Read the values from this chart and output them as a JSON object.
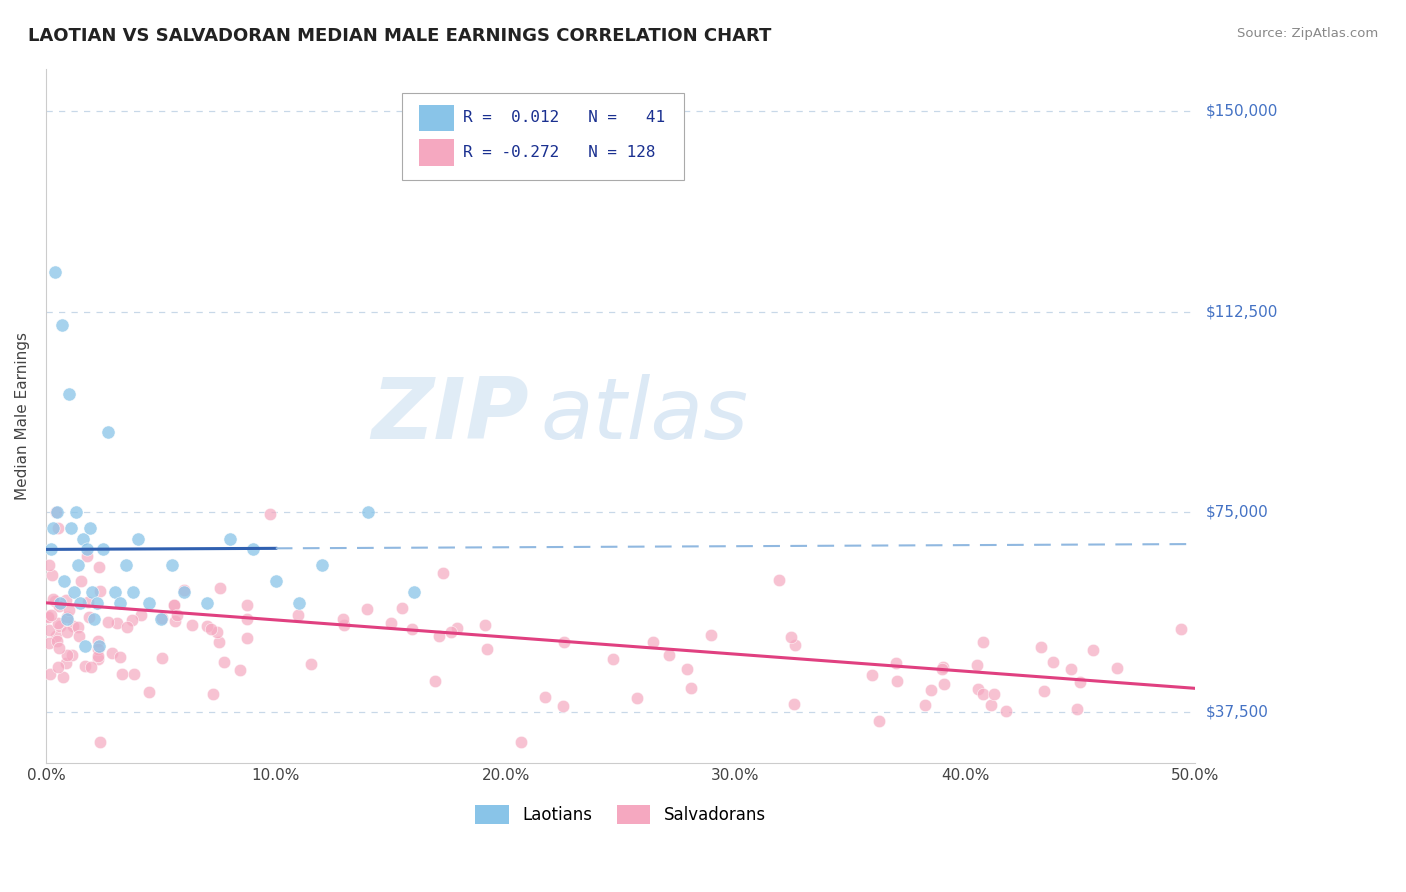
{
  "title": "LAOTIAN VS SALVADORAN MEDIAN MALE EARNINGS CORRELATION CHART",
  "source": "Source: ZipAtlas.com",
  "ylabel": "Median Male Earnings",
  "xlim": [
    0.0,
    0.5
  ],
  "ylim": [
    28000,
    158000
  ],
  "yticks": [
    37500,
    75000,
    112500,
    150000
  ],
  "ytick_labels": [
    "$37,500",
    "$75,000",
    "$112,500",
    "$150,000"
  ],
  "xticks": [
    0.0,
    0.1,
    0.2,
    0.3,
    0.4,
    0.5
  ],
  "xtick_labels": [
    "0.0%",
    "10.0%",
    "20.0%",
    "30.0%",
    "40.0%",
    "50.0%"
  ],
  "laotian_color": "#89c4e8",
  "salvadoran_color": "#f5a8c0",
  "laotian_line_color": "#3060b0",
  "salvadoran_line_color": "#e04080",
  "laotian_dash_color": "#90b8e0",
  "grid_color": "#c8d8e8",
  "legend_R1": "0.012",
  "legend_N1": "41",
  "legend_R2": "-0.272",
  "legend_N2": "128",
  "watermark_zip": "ZIP",
  "watermark_atlas": "atlas",
  "background_color": "#ffffff",
  "title_color": "#222222",
  "source_color": "#888888",
  "ylabel_color": "#444444",
  "legend_text_color": "#1a3090",
  "legend_label_color": "#333333"
}
